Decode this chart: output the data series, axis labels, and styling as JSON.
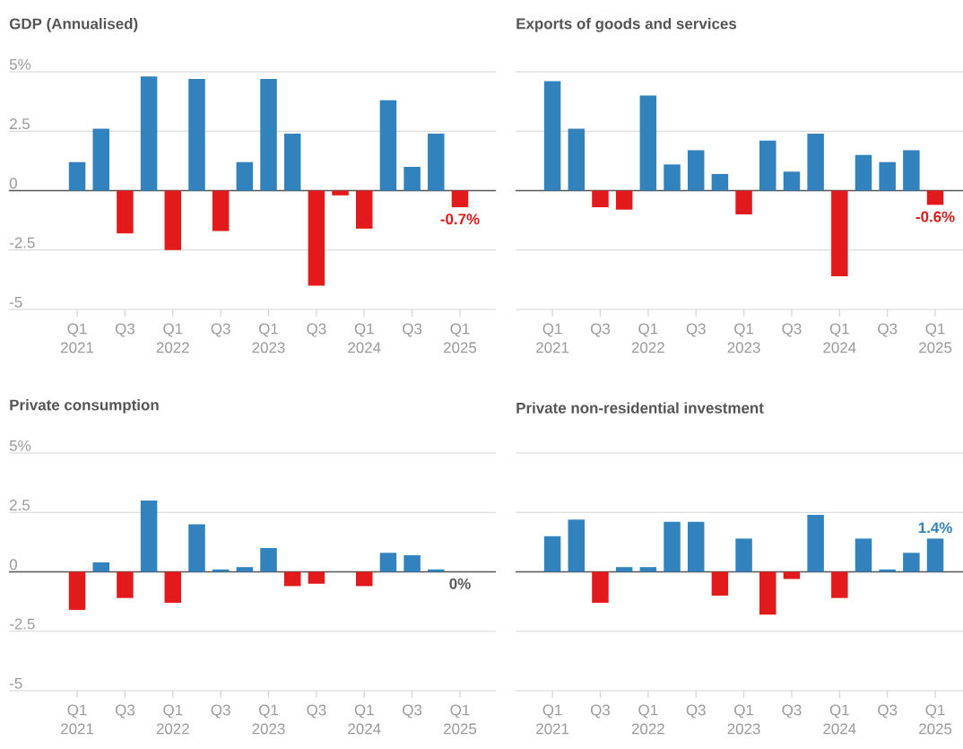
{
  "chart_data": [
    {
      "type": "bar",
      "title": "GDP (Annualised)",
      "categories": [
        "Q1 2021",
        null,
        "Q3",
        null,
        "Q1 2022",
        null,
        "Q3",
        null,
        "Q1 2023",
        null,
        "Q3",
        null,
        "Q1 2024",
        null,
        "Q3",
        null,
        "Q1 2025"
      ],
      "values": [
        1.2,
        2.6,
        -1.8,
        4.8,
        -2.5,
        4.7,
        -1.7,
        1.2,
        4.7,
        2.4,
        -4.0,
        -0.2,
        -1.6,
        3.8,
        1.0,
        2.4,
        -0.7
      ],
      "colors": [
        "#3182bd",
        "#3182bd",
        "#e31a1c",
        "#3182bd",
        "#e31a1c",
        "#3182bd",
        "#e31a1c",
        "#3182bd",
        "#3182bd",
        "#3182bd",
        "#e31a1c",
        "#e31a1c",
        "#e31a1c",
        "#3182bd",
        "#3182bd",
        "#3182bd",
        "#e31a1c"
      ],
      "value_labels": [
        null,
        null,
        null,
        null,
        null,
        null,
        null,
        null,
        null,
        null,
        null,
        null,
        null,
        null,
        null,
        null,
        "-0.7%"
      ],
      "ylim": [
        -5,
        5
      ],
      "yticks": [
        {
          "value": 5,
          "label": "5%"
        },
        2.5,
        0,
        -2.5,
        -5
      ],
      "grid": "y"
    },
    {
      "type": "bar",
      "title": "Exports of goods and services",
      "categories": [
        "Q1 2021",
        null,
        "Q3",
        null,
        "Q1 2022",
        null,
        "Q3",
        null,
        "Q1 2023",
        null,
        "Q3",
        null,
        "Q1 2024",
        null,
        "Q3",
        null,
        "Q1 2025"
      ],
      "values": [
        4.6,
        2.6,
        -0.7,
        -0.8,
        4.0,
        1.1,
        1.7,
        0.7,
        -1.0,
        2.1,
        0.8,
        2.4,
        -3.6,
        1.5,
        1.2,
        1.7,
        -0.6
      ],
      "colors": [
        "#3182bd",
        "#3182bd",
        "#e31a1c",
        "#e31a1c",
        "#3182bd",
        "#3182bd",
        "#3182bd",
        "#3182bd",
        "#e31a1c",
        "#3182bd",
        "#3182bd",
        "#3182bd",
        "#e31a1c",
        "#3182bd",
        "#3182bd",
        "#3182bd",
        "#e31a1c"
      ],
      "value_labels": [
        null,
        null,
        null,
        null,
        null,
        null,
        null,
        null,
        null,
        null,
        null,
        null,
        null,
        null,
        null,
        null,
        "-0.6%"
      ],
      "ylim": [
        -5,
        5
      ],
      "yticks": [
        5,
        2.5,
        0,
        -2.5,
        -5
      ],
      "grid": "y",
      "tick_labels": "x"
    },
    {
      "type": "bar",
      "title": "Private consumption",
      "categories": [
        "Q1 2021",
        null,
        "Q3",
        null,
        "Q1 2022",
        null,
        "Q3",
        null,
        "Q1 2023",
        null,
        "Q3",
        null,
        "Q1 2024",
        null,
        "Q3",
        null,
        "Q1 2025"
      ],
      "values": [
        -1.6,
        0.4,
        -1.1,
        3.0,
        -1.3,
        2.0,
        0.1,
        0.2,
        1.0,
        -0.6,
        -0.5,
        0,
        -0.6,
        0.8,
        0.7,
        0.1,
        0
      ],
      "colors": [
        "#e31a1c",
        "#3182bd",
        "#e31a1c",
        "#3182bd",
        "#e31a1c",
        "#3182bd",
        "#3182bd",
        "#3182bd",
        "#3182bd",
        "#e31a1c",
        "#e31a1c",
        "#3182bd",
        "#e31a1c",
        "#3182bd",
        "#3182bd",
        "#3182bd",
        "#595959"
      ],
      "value_labels": [
        null,
        null,
        null,
        null,
        null,
        null,
        null,
        null,
        null,
        null,
        null,
        null,
        null,
        null,
        null,
        null,
        "0%"
      ],
      "ylim": [
        -5,
        5
      ],
      "yticks": [
        {
          "value": 5,
          "label": "5%"
        },
        2.5,
        0,
        -2.5,
        -5
      ],
      "grid": "y"
    },
    {
      "type": "bar",
      "title": "Private non-residential investment",
      "categories": [
        "Q1 2021",
        null,
        "Q3",
        null,
        "Q1 2022",
        null,
        "Q3",
        null,
        "Q1 2023",
        null,
        "Q3",
        null,
        "Q1 2024",
        null,
        "Q3",
        null,
        "Q1 2025"
      ],
      "values": [
        1.5,
        2.2,
        -1.3,
        0.2,
        0.2,
        2.1,
        2.1,
        -1.0,
        1.4,
        -1.8,
        -0.3,
        2.4,
        -1.1,
        1.4,
        0.1,
        0.8,
        1.4
      ],
      "colors": [
        "#3182bd",
        "#3182bd",
        "#e31a1c",
        "#3182bd",
        "#3182bd",
        "#3182bd",
        "#3182bd",
        "#e31a1c",
        "#3182bd",
        "#e31a1c",
        "#e31a1c",
        "#3182bd",
        "#e31a1c",
        "#3182bd",
        "#3182bd",
        "#3182bd",
        "#3182bd"
      ],
      "value_labels": [
        null,
        null,
        null,
        null,
        null,
        null,
        null,
        null,
        null,
        null,
        null,
        null,
        null,
        null,
        null,
        null,
        "1.4%"
      ],
      "ylim": [
        -5,
        5
      ],
      "yticks": [
        5,
        2.5,
        0,
        -2.5,
        -5
      ],
      "grid": "y",
      "tick_labels": "x"
    }
  ]
}
